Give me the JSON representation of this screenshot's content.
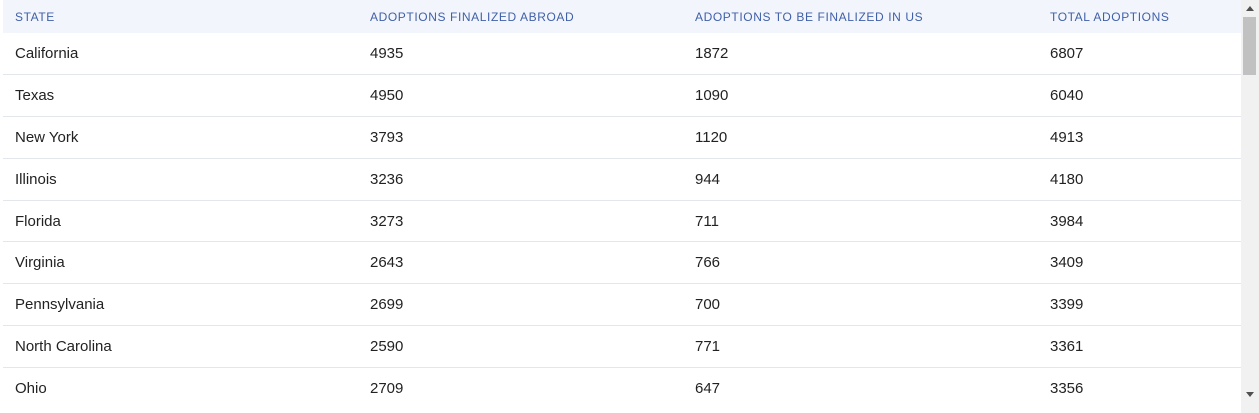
{
  "table": {
    "columns": [
      "STATE",
      "ADOPTIONS FINALIZED ABROAD",
      "ADOPTIONS TO BE FINALIZED IN US",
      "TOTAL ADOPTIONS"
    ],
    "rows": [
      [
        "California",
        "4935",
        "1872",
        "6807"
      ],
      [
        "Texas",
        "4950",
        "1090",
        "6040"
      ],
      [
        "New York",
        "3793",
        "1120",
        "4913"
      ],
      [
        "Illinois",
        "3236",
        "944",
        "4180"
      ],
      [
        "Florida",
        "3273",
        "711",
        "3984"
      ],
      [
        "Virginia",
        "2643",
        "766",
        "3409"
      ],
      [
        "Pennsylvania",
        "2699",
        "700",
        "3399"
      ],
      [
        "North Carolina",
        "2590",
        "771",
        "3361"
      ],
      [
        "Ohio",
        "2709",
        "647",
        "3356"
      ]
    ]
  },
  "colors": {
    "header_background": "#f2f6fc",
    "header_text": "#3f5fa8",
    "body_text": "#222222",
    "row_divider": "#e3e6eb"
  },
  "icons": {
    "scroll_up": "scroll-up-arrow-icon",
    "scroll_down": "scroll-down-arrow-icon"
  }
}
